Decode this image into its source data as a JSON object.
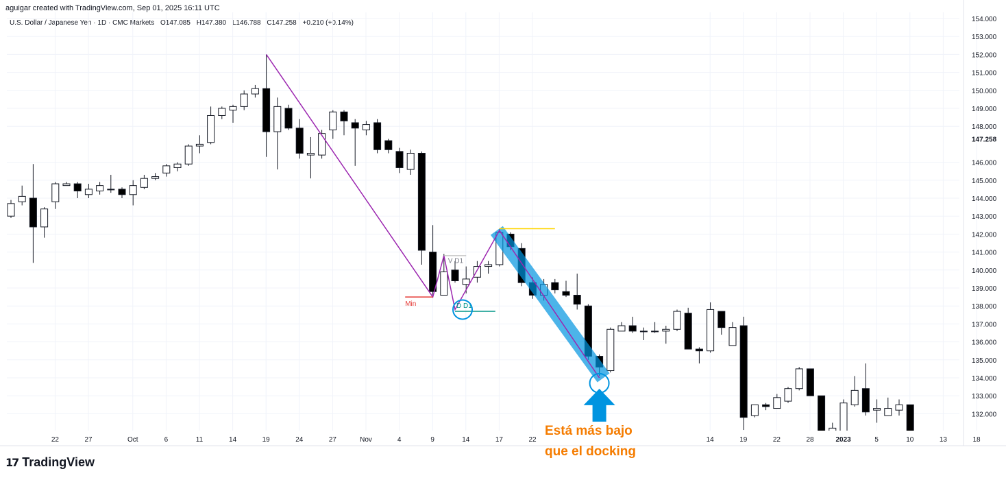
{
  "header": {
    "attribution": "aguigar created with TradingView.com, Sep 01, 2025 16:11 UTC",
    "symbol": "U.S. Dollar / Japanese Yen · 1D · CMC Markets",
    "open": "O147.085",
    "high": "H147.380",
    "low": "L146.788",
    "close": "C147.258",
    "change": "+0.210 (+0.14%)"
  },
  "brand": {
    "mark": "17",
    "name": "TradingView"
  },
  "colors": {
    "up": "#ffffff",
    "down": "#000000",
    "wick": "#131722",
    "zigzag": "#9c27b0",
    "highlight": "#0094e0",
    "annotation_text": "#f57c00",
    "min_marker": "#e53935",
    "teal_marker": "#009688",
    "yellow_marker": "#ffd600"
  },
  "chart_data": {
    "type": "candlestick",
    "title": "",
    "xlabel": "",
    "ylabel": "",
    "ylim": [
      130.8,
      154.4
    ],
    "last_price": "147.258",
    "y_ticks": [
      "154.000",
      "153.000",
      "152.000",
      "151.000",
      "150.000",
      "149.000",
      "148.000",
      "146.000",
      "145.000",
      "144.000",
      "143.000",
      "142.000",
      "141.000",
      "140.000",
      "139.000",
      "138.000",
      "137.000",
      "136.000",
      "135.000",
      "134.000",
      "133.000",
      "132.000"
    ],
    "x_ticks": [
      {
        "label": "22",
        "bar": 2
      },
      {
        "label": "27",
        "bar": 5
      },
      {
        "label": "Oct",
        "bar": 9
      },
      {
        "label": "6",
        "bar": 12
      },
      {
        "label": "11",
        "bar": 15
      },
      {
        "label": "14",
        "bar": 18
      },
      {
        "label": "19",
        "bar": 21
      },
      {
        "label": "24",
        "bar": 24
      },
      {
        "label": "27",
        "bar": 27
      },
      {
        "label": "Nov",
        "bar": 30
      },
      {
        "label": "4",
        "bar": 33
      },
      {
        "label": "9",
        "bar": 36
      },
      {
        "label": "14",
        "bar": 39
      },
      {
        "label": "17",
        "bar": 42
      },
      {
        "label": "22",
        "bar": 45
      },
      {
        "label": "14",
        "bar": 61
      },
      {
        "label": "19",
        "bar": 64
      },
      {
        "label": "22",
        "bar": 67
      },
      {
        "label": "28",
        "bar": 70
      },
      {
        "label": "2023",
        "bar": 73
      },
      {
        "label": "5",
        "bar": 76
      },
      {
        "label": "10",
        "bar": 79
      },
      {
        "label": "13",
        "bar": 82
      },
      {
        "label": "18",
        "bar": 85
      }
    ],
    "candles": [
      {
        "o": 143.0,
        "h": 143.9,
        "l": 142.9,
        "c": 143.7
      },
      {
        "o": 143.8,
        "h": 144.7,
        "l": 143.6,
        "c": 144.1
      },
      {
        "o": 144.0,
        "h": 145.9,
        "l": 140.4,
        "c": 142.4
      },
      {
        "o": 142.4,
        "h": 143.5,
        "l": 141.8,
        "c": 143.4
      },
      {
        "o": 143.8,
        "h": 144.9,
        "l": 143.4,
        "c": 144.8
      },
      {
        "o": 144.7,
        "h": 144.9,
        "l": 144.7,
        "c": 144.8
      },
      {
        "o": 144.8,
        "h": 144.9,
        "l": 144.0,
        "c": 144.4
      },
      {
        "o": 144.2,
        "h": 144.8,
        "l": 144.0,
        "c": 144.5
      },
      {
        "o": 144.4,
        "h": 144.9,
        "l": 144.2,
        "c": 144.7
      },
      {
        "o": 144.5,
        "h": 145.3,
        "l": 144.3,
        "c": 144.5
      },
      {
        "o": 144.5,
        "h": 144.6,
        "l": 144.0,
        "c": 144.2
      },
      {
        "o": 144.2,
        "h": 145.0,
        "l": 143.6,
        "c": 144.7
      },
      {
        "o": 144.6,
        "h": 145.3,
        "l": 144.5,
        "c": 145.1
      },
      {
        "o": 145.1,
        "h": 145.4,
        "l": 145.0,
        "c": 145.2
      },
      {
        "o": 145.4,
        "h": 145.9,
        "l": 145.2,
        "c": 145.8
      },
      {
        "o": 145.7,
        "h": 146.0,
        "l": 145.5,
        "c": 145.9
      },
      {
        "o": 145.9,
        "h": 147.0,
        "l": 145.8,
        "c": 146.9
      },
      {
        "o": 146.9,
        "h": 147.5,
        "l": 146.5,
        "c": 147.0
      },
      {
        "o": 147.1,
        "h": 149.1,
        "l": 147.0,
        "c": 148.6
      },
      {
        "o": 148.6,
        "h": 149.1,
        "l": 148.4,
        "c": 149.0
      },
      {
        "o": 148.9,
        "h": 149.2,
        "l": 148.2,
        "c": 149.1
      },
      {
        "o": 149.1,
        "h": 150.0,
        "l": 148.9,
        "c": 149.8
      },
      {
        "o": 149.8,
        "h": 150.3,
        "l": 149.6,
        "c": 150.1
      },
      {
        "o": 150.1,
        "h": 152.0,
        "l": 146.3,
        "c": 147.7
      },
      {
        "o": 147.7,
        "h": 149.6,
        "l": 145.6,
        "c": 149.1
      },
      {
        "o": 149.0,
        "h": 149.2,
        "l": 147.8,
        "c": 147.9
      },
      {
        "o": 147.9,
        "h": 148.4,
        "l": 146.2,
        "c": 146.5
      },
      {
        "o": 146.4,
        "h": 147.4,
        "l": 145.1,
        "c": 146.5
      },
      {
        "o": 146.4,
        "h": 147.8,
        "l": 146.2,
        "c": 147.6
      },
      {
        "o": 147.8,
        "h": 148.9,
        "l": 147.3,
        "c": 148.8
      },
      {
        "o": 148.8,
        "h": 148.9,
        "l": 147.5,
        "c": 148.3
      },
      {
        "o": 148.2,
        "h": 148.4,
        "l": 145.8,
        "c": 147.9
      },
      {
        "o": 147.8,
        "h": 148.3,
        "l": 147.5,
        "c": 148.1
      },
      {
        "o": 148.2,
        "h": 148.4,
        "l": 146.5,
        "c": 146.7
      },
      {
        "o": 147.2,
        "h": 147.3,
        "l": 146.5,
        "c": 146.7
      },
      {
        "o": 146.6,
        "h": 146.8,
        "l": 145.4,
        "c": 145.7
      },
      {
        "o": 145.6,
        "h": 146.7,
        "l": 145.3,
        "c": 146.5
      },
      {
        "o": 146.5,
        "h": 146.6,
        "l": 140.3,
        "c": 141.1
      },
      {
        "o": 141.0,
        "h": 142.5,
        "l": 138.6,
        "c": 138.8
      },
      {
        "o": 138.6,
        "h": 140.9,
        "l": 138.6,
        "c": 139.9
      },
      {
        "o": 140.0,
        "h": 140.5,
        "l": 139.3,
        "c": 139.4
      },
      {
        "o": 139.2,
        "h": 140.2,
        "l": 138.7,
        "c": 139.5
      },
      {
        "o": 139.6,
        "h": 140.5,
        "l": 139.3,
        "c": 140.2
      },
      {
        "o": 140.2,
        "h": 140.5,
        "l": 139.8,
        "c": 140.3
      },
      {
        "o": 140.3,
        "h": 142.3,
        "l": 140.2,
        "c": 142.1
      },
      {
        "o": 142.0,
        "h": 142.1,
        "l": 141.1,
        "c": 141.3
      },
      {
        "o": 141.2,
        "h": 141.5,
        "l": 139.1,
        "c": 139.3
      },
      {
        "o": 139.3,
        "h": 139.6,
        "l": 138.4,
        "c": 138.6
      },
      {
        "o": 138.6,
        "h": 139.5,
        "l": 138.3,
        "c": 139.2
      },
      {
        "o": 139.3,
        "h": 139.5,
        "l": 138.7,
        "c": 138.9
      },
      {
        "o": 138.8,
        "h": 139.4,
        "l": 138.5,
        "c": 138.6
      },
      {
        "o": 138.6,
        "h": 139.8,
        "l": 137.8,
        "c": 138.1
      },
      {
        "o": 138.0,
        "h": 138.1,
        "l": 135.0,
        "c": 135.2
      },
      {
        "o": 135.2,
        "h": 135.3,
        "l": 134.1,
        "c": 134.6
      },
      {
        "o": 134.4,
        "h": 136.8,
        "l": 134.3,
        "c": 136.7
      },
      {
        "o": 136.6,
        "h": 137.1,
        "l": 136.6,
        "c": 136.9
      },
      {
        "o": 136.9,
        "h": 137.4,
        "l": 136.5,
        "c": 136.6
      },
      {
        "o": 136.6,
        "h": 136.8,
        "l": 136.1,
        "c": 136.6
      },
      {
        "o": 136.6,
        "h": 137.1,
        "l": 136.5,
        "c": 136.6
      },
      {
        "o": 136.6,
        "h": 136.9,
        "l": 135.9,
        "c": 136.7
      },
      {
        "o": 136.7,
        "h": 137.8,
        "l": 136.6,
        "c": 137.7
      },
      {
        "o": 137.6,
        "h": 137.9,
        "l": 135.6,
        "c": 135.6
      },
      {
        "o": 135.6,
        "h": 135.7,
        "l": 134.8,
        "c": 135.5
      },
      {
        "o": 135.5,
        "h": 138.2,
        "l": 135.4,
        "c": 137.8
      },
      {
        "o": 137.7,
        "h": 137.7,
        "l": 136.4,
        "c": 136.8
      },
      {
        "o": 135.8,
        "h": 137.1,
        "l": 135.8,
        "c": 136.8
      },
      {
        "o": 136.9,
        "h": 137.4,
        "l": 131.1,
        "c": 131.8
      },
      {
        "o": 131.9,
        "h": 132.5,
        "l": 131.8,
        "c": 132.5
      },
      {
        "o": 132.5,
        "h": 132.6,
        "l": 132.2,
        "c": 132.4
      },
      {
        "o": 132.3,
        "h": 133.1,
        "l": 132.3,
        "c": 132.9
      },
      {
        "o": 132.7,
        "h": 133.5,
        "l": 132.6,
        "c": 133.4
      },
      {
        "o": 133.4,
        "h": 134.6,
        "l": 133.3,
        "c": 134.5
      },
      {
        "o": 134.5,
        "h": 134.5,
        "l": 133.0,
        "c": 133.0
      },
      {
        "o": 133.0,
        "h": 133.0,
        "l": 131.0,
        "c": 131.0
      },
      {
        "o": 131.0,
        "h": 131.5,
        "l": 130.8,
        "c": 131.2
      },
      {
        "o": 131.0,
        "h": 132.8,
        "l": 131.0,
        "c": 132.6
      },
      {
        "o": 132.5,
        "h": 134.1,
        "l": 132.4,
        "c": 133.3
      },
      {
        "o": 133.4,
        "h": 134.8,
        "l": 131.9,
        "c": 132.1
      },
      {
        "o": 132.2,
        "h": 132.8,
        "l": 131.5,
        "c": 132.3
      },
      {
        "o": 131.9,
        "h": 132.9,
        "l": 131.9,
        "c": 132.3
      },
      {
        "o": 132.2,
        "h": 132.8,
        "l": 131.9,
        "c": 132.5
      },
      {
        "o": 132.5,
        "h": 132.5,
        "l": 131.0,
        "c": 131.0
      }
    ],
    "zigzag": [
      {
        "bar": 23,
        "p": 152.0
      },
      {
        "bar": 38,
        "p": 138.5
      },
      {
        "bar": 39,
        "p": 140.8
      },
      {
        "bar": 40,
        "p": 137.8
      },
      {
        "bar": 44,
        "p": 142.2
      },
      {
        "bar": 53,
        "p": 134.0
      }
    ],
    "annotations": {
      "min_label": "Min",
      "vd1_label": "V D1",
      "dd1_label": "D D1",
      "callout_line1": "Está más bajo",
      "callout_line2": "que el docking"
    }
  }
}
